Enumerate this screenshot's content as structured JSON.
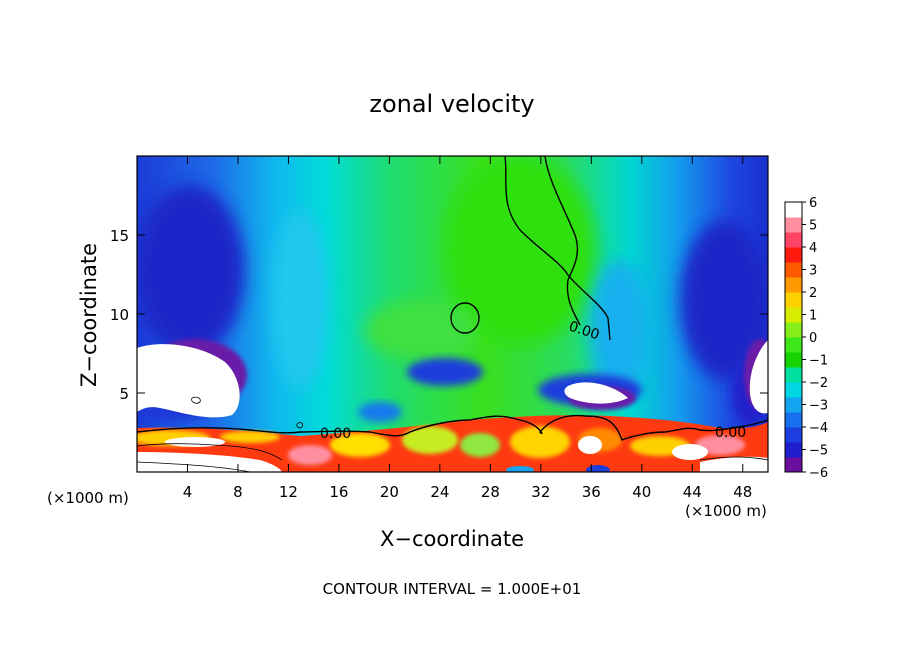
{
  "chart_data": {
    "type": "heatmap",
    "title": "zonal velocity",
    "xlabel": "X−coordinate",
    "ylabel": "Z−coordinate",
    "x_unit_left": "(×1000 m)",
    "x_unit_right": "(×1000 m)",
    "footer": "CONTOUR INTERVAL = 1.000E+01",
    "xlim": [
      0,
      50
    ],
    "ylim": [
      0,
      20
    ],
    "x_ticks": [
      4,
      8,
      12,
      16,
      20,
      24,
      28,
      32,
      36,
      40,
      44,
      48
    ],
    "y_ticks": [
      5,
      10,
      15
    ],
    "colorbar": {
      "range": [
        -6,
        6
      ],
      "ticks": [
        "6",
        "5",
        "4",
        "3",
        "2",
        "1",
        "0",
        "−1",
        "−2",
        "−3",
        "−4",
        "−5",
        "−6"
      ],
      "colors": [
        "#6a0f9e",
        "#1e1ecc",
        "#1d3fe0",
        "#1870ee",
        "#14a4f0",
        "#00d6e4",
        "#00e0a0",
        "#16d400",
        "#3de81a",
        "#86ee1a",
        "#d8ec00",
        "#ffd000",
        "#ff9a00",
        "#ff5a00",
        "#ff1a10",
        "#ff4466",
        "#ff8fa0",
        "#ffffff"
      ]
    },
    "contour_labels": [
      "0.00",
      "0.00",
      "0.00"
    ]
  }
}
